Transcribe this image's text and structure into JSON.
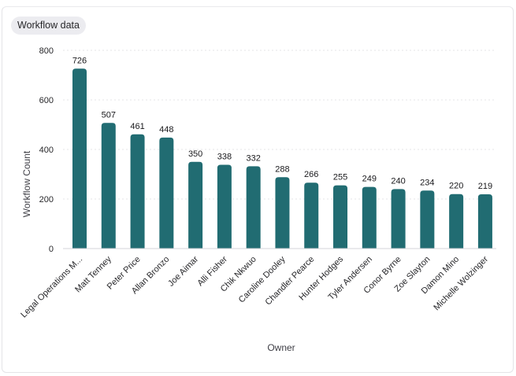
{
  "header": {
    "tab_label": "Workflow data"
  },
  "chart_data": {
    "type": "bar",
    "xlabel": "Owner",
    "ylabel": "Workflow Count",
    "ylim": [
      0,
      800
    ],
    "yticks": [
      0,
      200,
      400,
      600,
      800
    ],
    "categories": [
      "Legal Operations M...",
      "Matt Tenney",
      "Peter Price",
      "Allan Bronzo",
      "Joe Aimar",
      "Alli Fisher",
      "Chik Nkwuo",
      "Caroline Dooley",
      "Chandler Pearce",
      "Hunter Hodges",
      "Tyler Andersen",
      "Conor Byrne",
      "Zoe Slayton",
      "Damon Mino",
      "Michelle Wolzinger"
    ],
    "values": [
      726,
      507,
      461,
      448,
      350,
      338,
      332,
      288,
      266,
      255,
      249,
      240,
      234,
      220,
      219
    ],
    "bar_color": "#216c72",
    "grid_color": "#e4e4e7"
  }
}
